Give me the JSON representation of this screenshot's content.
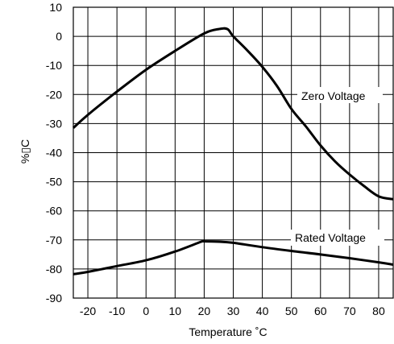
{
  "chart_data": {
    "type": "line",
    "xlabel": "Temperature ˚C",
    "ylabel": "%▯C",
    "xlim": [
      -25,
      85
    ],
    "ylim": [
      -90,
      10
    ],
    "x_ticks": [
      -20,
      -10,
      0,
      10,
      20,
      30,
      40,
      50,
      60,
      70,
      80
    ],
    "y_ticks": [
      10,
      0,
      -10,
      -20,
      -30,
      -40,
      -50,
      -60,
      -70,
      -80,
      -90
    ],
    "grid": true,
    "series": [
      {
        "name": "Zero Voltage",
        "x": [
          -25,
          -20,
          -10,
          0,
          10,
          20,
          25,
          28,
          30,
          35,
          40,
          45,
          50,
          55,
          60,
          65,
          70,
          75,
          80,
          85
        ],
        "y": [
          -31.5,
          -27,
          -19,
          -11.5,
          -5,
          1,
          2.5,
          2.5,
          0,
          -5,
          -10.5,
          -17,
          -25,
          -31,
          -37.5,
          -43,
          -47.5,
          -51.5,
          -55,
          -56
        ]
      },
      {
        "name": "Rated Voltage",
        "x": [
          -25,
          -20,
          -10,
          0,
          10,
          19,
          20,
          25,
          30,
          40,
          50,
          60,
          70,
          80,
          85
        ],
        "y": [
          -81.8,
          -81,
          -79,
          -77,
          -74,
          -70.6,
          -70.5,
          -70.6,
          -71,
          -72.5,
          -73.8,
          -75,
          -76.3,
          -77.7,
          -78.5
        ]
      }
    ],
    "annotations": [
      {
        "text": "Zero Voltage",
        "series": 0
      },
      {
        "text": "Rated Voltage",
        "series": 1
      }
    ]
  }
}
